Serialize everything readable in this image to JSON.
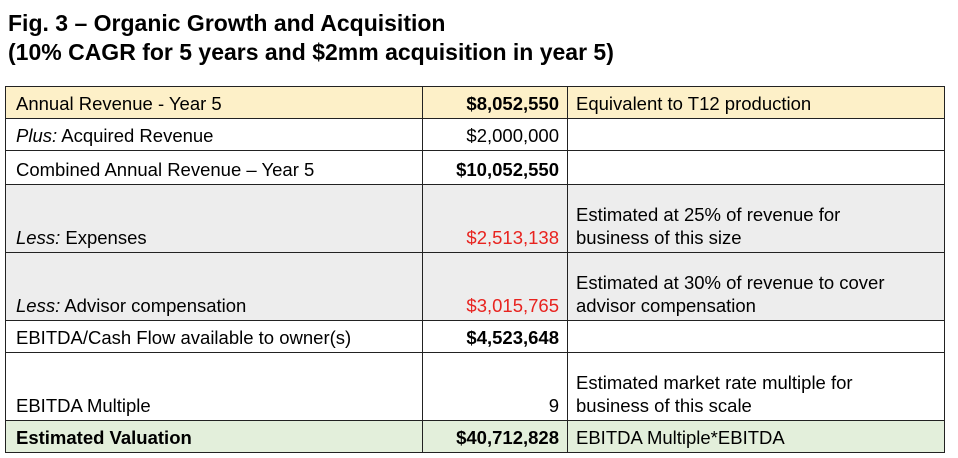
{
  "title_line1": "Fig. 3 – Organic Growth and Acquisition",
  "title_line2": "(10% CAGR for 5 years and $2mm acquisition in year 5)",
  "colors": {
    "highlight_top": "#fdf0c8",
    "shaded": "#ededed",
    "highlight_bottom": "#e3efdb",
    "negative": "#e8231f"
  },
  "rows": [
    {
      "prefix": "",
      "label": "Annual Revenue - Year 5",
      "value": "$8,052,550",
      "note": "Equivalent to T12 production"
    },
    {
      "prefix": "Plus:",
      "label": " Acquired Revenue",
      "value": "$2,000,000",
      "note": ""
    },
    {
      "prefix": "",
      "label": "Combined Annual Revenue – Year 5",
      "value": "$10,052,550",
      "note": ""
    },
    {
      "prefix": "Less:",
      "label": " Expenses",
      "value": "$2,513,138",
      "note_line1": "Estimated at 25% of revenue for",
      "note_line2": "business of this size"
    },
    {
      "prefix": "Less:",
      "label": " Advisor compensation",
      "value": "$3,015,765",
      "note_line1": "Estimated at 30% of revenue to cover",
      "note_line2": "advisor compensation"
    },
    {
      "prefix": "",
      "label": "EBITDA/Cash Flow available to owner(s)",
      "value": "$4,523,648",
      "note": ""
    },
    {
      "prefix": "",
      "label": "EBITDA Multiple",
      "value": "9",
      "note_line1": "Estimated market rate multiple for",
      "note_line2": "business of this scale"
    },
    {
      "prefix": "",
      "label": "Estimated Valuation",
      "value": "$40,712,828",
      "note": "EBITDA Multiple*EBITDA"
    }
  ]
}
